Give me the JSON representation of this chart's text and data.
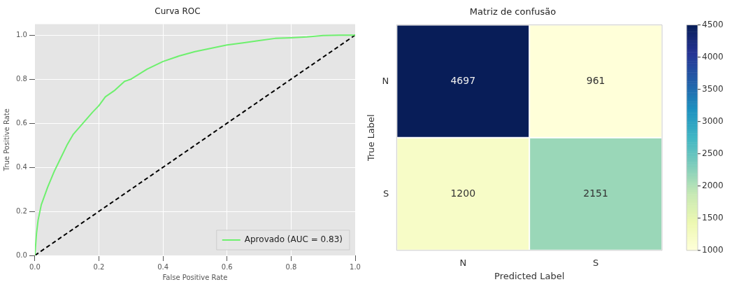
{
  "chart_data": [
    {
      "type": "line",
      "title": "Curva ROC",
      "xlabel": "False Positive Rate",
      "ylabel": "True Positive Rate",
      "xlim": [
        0,
        1
      ],
      "ylim": [
        0,
        1.05
      ],
      "xticks": [
        {
          "value": 0,
          "label": "0.0"
        },
        0.2,
        0.4,
        0.6,
        0.8,
        {
          "value": 1,
          "label": "1.0"
        }
      ],
      "yticks": [
        {
          "value": 0,
          "label": "0.0"
        },
        0.2,
        0.4,
        0.6,
        0.8,
        {
          "value": 1,
          "label": "1.0"
        }
      ],
      "grid": true,
      "legend": "bottom right",
      "series": [
        {
          "name": "Aprovado (AUC = 0.83)",
          "color": "#6ef06e",
          "line_style": "solid",
          "x": [
            0,
            0.005,
            0.01,
            0.02,
            0.04,
            0.06,
            0.08,
            0.1,
            0.12,
            0.15,
            0.18,
            0.2,
            0.22,
            0.25,
            0.28,
            0.3,
            0.35,
            0.4,
            0.45,
            0.5,
            0.55,
            0.6,
            0.65,
            0.7,
            0.75,
            0.8,
            0.85,
            0.9,
            0.95,
            1
          ],
          "values": [
            0,
            0.1,
            0.16,
            0.23,
            0.31,
            0.38,
            0.44,
            0.5,
            0.55,
            0.6,
            0.65,
            0.68,
            0.72,
            0.75,
            0.79,
            0.8,
            0.845,
            0.88,
            0.905,
            0.925,
            0.94,
            0.955,
            0.965,
            0.975,
            0.985,
            0.988,
            0.992,
            0.998,
            1,
            1
          ]
        },
        {
          "color": "#000000",
          "line_style": "dashed",
          "x": [
            0,
            1
          ],
          "values": [
            0,
            1
          ]
        }
      ]
    },
    {
      "type": "heatmap",
      "title": "Matriz de confusão",
      "xlabel": "Predicted Label",
      "ylabel": "True Label",
      "categories": [
        "N",
        "S"
      ],
      "y_categories": [
        "N",
        "S"
      ],
      "cells": [
        [
          4697,
          961
        ],
        [
          1200,
          2151
        ]
      ],
      "clim": [
        1000,
        4500
      ],
      "cticks": [
        1000,
        1500,
        2000,
        2500,
        3000,
        3500,
        4000,
        4500
      ],
      "data_labels": true
    }
  ]
}
